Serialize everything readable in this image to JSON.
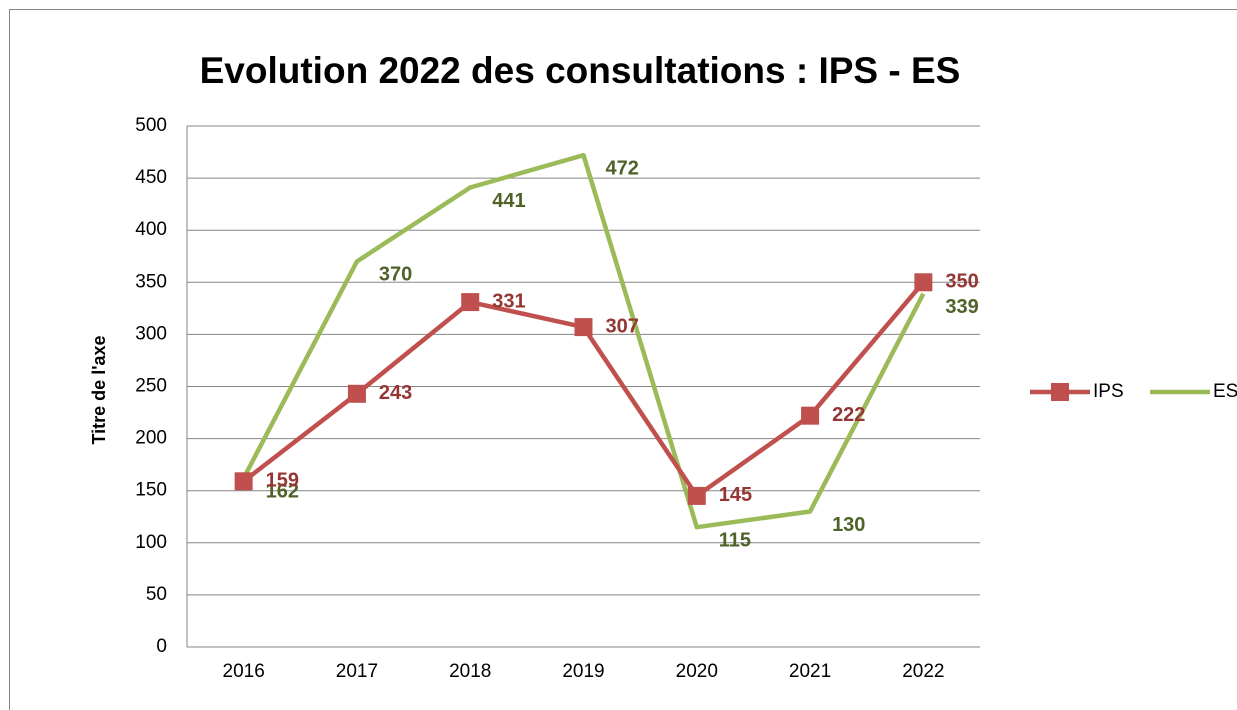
{
  "chart_data": {
    "type": "line",
    "title": "Evolution 2022 des consultations : IPS - ES",
    "y_label": "Titre de l'axe",
    "categories": [
      "2016",
      "2017",
      "2018",
      "2019",
      "2020",
      "2021",
      "2022"
    ],
    "series": [
      {
        "name": "IPS",
        "color": "#c0504d",
        "label_color": "#943634",
        "marker": "square",
        "values": [
          159,
          243,
          331,
          307,
          145,
          222,
          350
        ]
      },
      {
        "name": "ES",
        "color": "#9bbb59",
        "label_color": "#4f6228",
        "marker": "none",
        "values": [
          162,
          370,
          441,
          472,
          115,
          130,
          339
        ]
      }
    ],
    "ylim": [
      0,
      500
    ],
    "yticks": [
      0,
      50,
      100,
      150,
      200,
      250,
      300,
      350,
      400,
      450,
      500
    ],
    "grid": true,
    "legend": "right"
  }
}
